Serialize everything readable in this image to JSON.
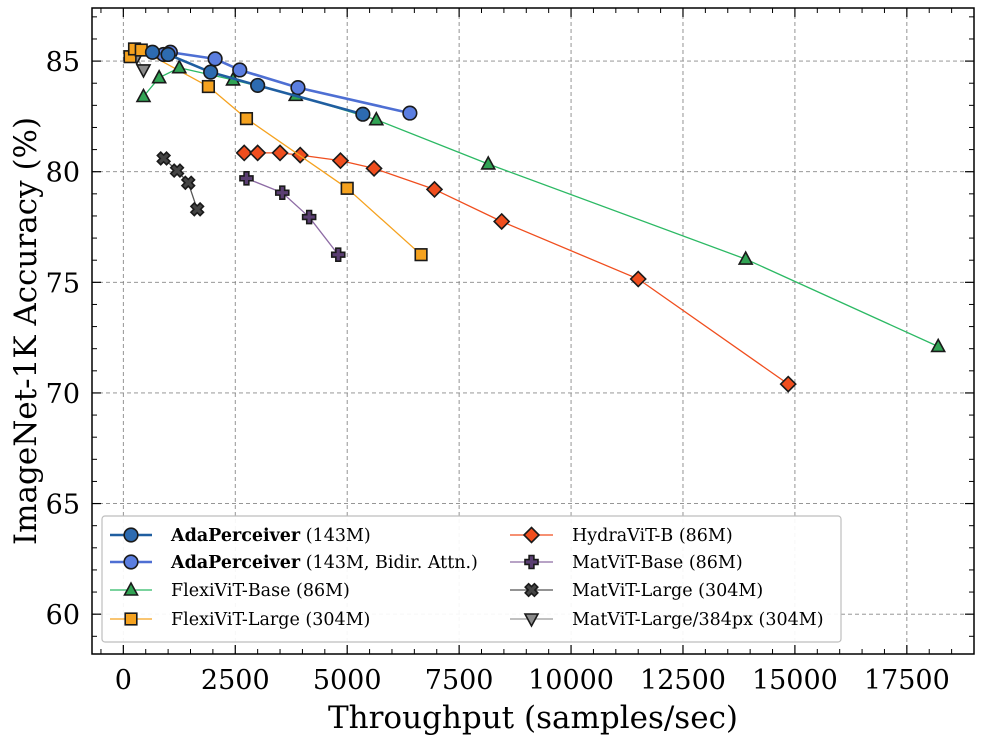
{
  "chart_data": {
    "type": "line",
    "title": "",
    "xlabel": "Throughput (samples/sec)",
    "ylabel": "ImageNet-1K Accuracy (%)",
    "xlim": [
      -700,
      19000
    ],
    "ylim": [
      58.2,
      87.4
    ],
    "x_ticks": [
      0,
      2500,
      5000,
      7500,
      10000,
      12500,
      15000,
      17500
    ],
    "x_tick_labels": [
      "0",
      "2500",
      "5000",
      "7500",
      "10000",
      "12500",
      "15000",
      "17500"
    ],
    "y_ticks": [
      60,
      65,
      70,
      75,
      80,
      85
    ],
    "y_tick_labels": [
      "60",
      "65",
      "70",
      "75",
      "80",
      "85"
    ],
    "grid": true,
    "legend_position": "lower-left",
    "series": [
      {
        "name": "AdaPerceiver",
        "name_suffix": " (143M)",
        "bold_name": true,
        "color": "#1f5ea0",
        "marker_face": "#2d6bb0",
        "marker": "circle",
        "x": [
          650,
          1000,
          1950,
          3000,
          5350
        ],
        "y": [
          85.4,
          85.3,
          84.5,
          83.9,
          82.6
        ]
      },
      {
        "name": "AdaPerceiver",
        "name_suffix": " (143M, Bidir. Attn.)",
        "bold_name": true,
        "color": "#4e6fd3",
        "marker_face": "#5b7ee0",
        "marker": "circle",
        "x": [
          900,
          1050,
          2050,
          2600,
          3900,
          6400
        ],
        "y": [
          85.3,
          85.4,
          85.1,
          84.6,
          83.8,
          82.65
        ]
      },
      {
        "name": "FlexiViT-Base (86M)",
        "bold_name": false,
        "color": "#2cb964",
        "marker_face": "#31a354",
        "marker": "triangle-up",
        "x": [
          450,
          800,
          1250,
          2450,
          3850,
          5650,
          8150,
          13900,
          18200
        ],
        "y": [
          83.4,
          84.25,
          84.7,
          84.15,
          83.45,
          82.35,
          80.35,
          76.05,
          72.1
        ]
      },
      {
        "name": "FlexiViT-Large (304M)",
        "bold_name": false,
        "color": "#f5a21f",
        "marker_face": "#f5a21f",
        "marker": "square",
        "x": [
          150,
          250,
          400,
          1900,
          2750,
          5000,
          6650
        ],
        "y": [
          85.2,
          85.55,
          85.5,
          83.85,
          82.4,
          79.25,
          76.25
        ]
      },
      {
        "name": "HydraViT-B (86M)",
        "bold_name": false,
        "color": "#f04e1e",
        "marker_face": "#f04e1e",
        "marker": "diamond",
        "x": [
          2700,
          3000,
          3500,
          3950,
          4850,
          5600,
          6950,
          8450,
          11500,
          14850
        ],
        "y": [
          80.85,
          80.85,
          80.85,
          80.75,
          80.5,
          80.15,
          79.2,
          77.75,
          75.15,
          70.4
        ]
      },
      {
        "name": "MatViT-Base (86M)",
        "bold_name": false,
        "color": "#8e6ca5",
        "marker_face": "#5a3e72",
        "marker": "plus",
        "x": [
          2750,
          3550,
          4150,
          4800
        ],
        "y": [
          79.7,
          79.05,
          77.95,
          76.25
        ]
      },
      {
        "name": "MatViT-Large (304M)",
        "bold_name": false,
        "color": "#555555",
        "marker_face": "#444444",
        "marker": "x",
        "x": [
          900,
          1200,
          1450,
          1650
        ],
        "y": [
          80.6,
          80.05,
          79.5,
          78.3
        ]
      },
      {
        "name": "MatViT-Large/384px (304M)",
        "bold_name": false,
        "color": "#9a9a9a",
        "marker_face": "#8a8a8a",
        "marker": "triangle-down",
        "x": [
          300,
          450
        ],
        "y": [
          85.2,
          84.6
        ]
      }
    ]
  }
}
